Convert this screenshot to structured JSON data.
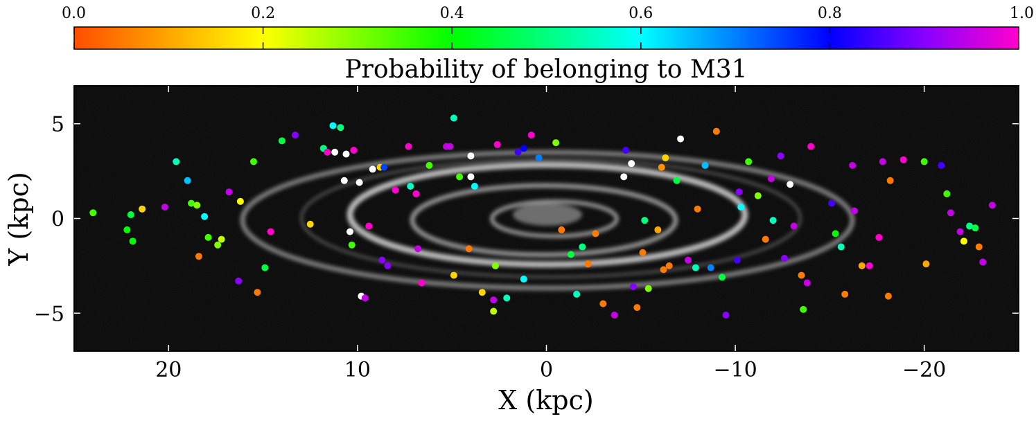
{
  "chart_data": {
    "type": "scatter",
    "background": "grayscale optical image of the M31 (Andromeda) galaxy disk",
    "xlabel": "X (kpc)",
    "ylabel": "Y (kpc)",
    "xlim": [
      25,
      -25
    ],
    "ylim": [
      -7,
      7
    ],
    "xticks": [
      20,
      10,
      0,
      -10,
      -20
    ],
    "xtick_labels": [
      "20",
      "10",
      "0",
      "−10",
      "−20"
    ],
    "yticks": [
      5,
      0,
      -5
    ],
    "ytick_labels": [
      "5",
      "0",
      "−5"
    ],
    "colorbar": {
      "label": "Probability of belonging to M31",
      "range": [
        0,
        1
      ],
      "ticks": [
        0.0,
        0.2,
        0.4,
        0.6,
        0.8,
        1.0
      ],
      "tick_labels": [
        "0.0",
        "0.2",
        "0.4",
        "0.6",
        "0.8",
        "1.0"
      ],
      "placement": "top"
    },
    "points": [
      [
        24.0,
        0.3,
        0.35
      ],
      [
        22.2,
        -0.6,
        0.4
      ],
      [
        22.0,
        0.2,
        0.45
      ],
      [
        21.9,
        -1.2,
        0.4
      ],
      [
        21.4,
        0.5,
        0.15
      ],
      [
        20.2,
        0.6,
        0.95
      ],
      [
        19.6,
        3.0,
        0.55
      ],
      [
        19.0,
        2.0,
        0.65
      ],
      [
        18.8,
        0.8,
        0.35
      ],
      [
        18.5,
        0.7,
        0.3
      ],
      [
        18.4,
        -2.0,
        0.05
      ],
      [
        18.1,
        0.1,
        0.6
      ],
      [
        17.9,
        -1.0,
        0.35
      ],
      [
        17.4,
        -1.4,
        0.3
      ],
      [
        17.2,
        -1.1,
        0.25
      ],
      [
        16.8,
        1.4,
        0.95
      ],
      [
        16.3,
        -3.3,
        0.9
      ],
      [
        16.2,
        0.9,
        0.2
      ],
      [
        15.5,
        3.0,
        0.35
      ],
      [
        15.3,
        -3.9,
        0.05
      ],
      [
        14.9,
        -2.6,
        0.45
      ],
      [
        14.6,
        -0.7,
        1.0
      ],
      [
        14.0,
        4.1,
        0.45
      ],
      [
        13.3,
        4.4,
        0.9
      ],
      [
        12.5,
        -0.3,
        0.15
      ],
      [
        11.8,
        3.7,
        0.5
      ],
      [
        11.6,
        3.5,
        1.0
      ],
      [
        11.3,
        4.9,
        0.6
      ],
      [
        11.2,
        3.5,
        -1
      ],
      [
        10.9,
        4.8,
        0.5
      ],
      [
        10.7,
        2.0,
        -1
      ],
      [
        10.6,
        3.4,
        -1
      ],
      [
        10.4,
        -0.7,
        -1
      ],
      [
        10.3,
        -1.4,
        0.35
      ],
      [
        10.2,
        3.6,
        1.0
      ],
      [
        9.9,
        1.9,
        -1
      ],
      [
        9.8,
        -4.1,
        -1
      ],
      [
        9.6,
        -4.2,
        0.95
      ],
      [
        9.4,
        -0.4,
        1.0
      ],
      [
        9.2,
        2.6,
        -1
      ],
      [
        8.8,
        2.7,
        0.15
      ],
      [
        8.6,
        2.7,
        0.75
      ],
      [
        8.4,
        -2.5,
        0.9
      ],
      [
        8.0,
        1.5,
        1.0
      ],
      [
        7.3,
        3.8,
        1.0
      ],
      [
        7.2,
        1.7,
        0.55
      ],
      [
        6.9,
        1.3,
        1.0
      ],
      [
        6.6,
        -3.4,
        1.0
      ],
      [
        6.2,
        2.8,
        0.35
      ],
      [
        5.3,
        3.8,
        0.95
      ],
      [
        5.1,
        3.8,
        0.95
      ],
      [
        4.9,
        5.3,
        0.55
      ],
      [
        4.9,
        -3.0,
        0.15
      ],
      [
        4.6,
        2.2,
        0.35
      ],
      [
        4.0,
        2.2,
        -1
      ],
      [
        4.1,
        -1.6,
        0.05
      ],
      [
        4.0,
        3.3,
        -1
      ],
      [
        3.4,
        -3.9,
        0.15
      ],
      [
        2.8,
        -4.3,
        0.95
      ],
      [
        2.8,
        -4.9,
        0.25
      ],
      [
        2.7,
        -2.5,
        0.3
      ],
      [
        2.6,
        3.9,
        1.0
      ],
      [
        1.5,
        3.5,
        0.85
      ],
      [
        1.2,
        3.7,
        0.8
      ],
      [
        0.8,
        4.4,
        1.0
      ],
      [
        0.4,
        3.2,
        0.7
      ],
      [
        -0.5,
        4.0,
        0.3
      ],
      [
        -0.8,
        -0.6,
        0.05
      ],
      [
        -1.3,
        -1.9,
        0.45
      ],
      [
        -1.6,
        -4.0,
        0.55
      ],
      [
        -1.9,
        -1.5,
        0.5
      ],
      [
        -2.2,
        -2.4,
        0.05
      ],
      [
        -2.6,
        -0.8,
        0.05
      ],
      [
        -3.0,
        -4.5,
        0.05
      ],
      [
        -3.6,
        -5.1,
        0.95
      ],
      [
        -4.1,
        2.2,
        -1
      ],
      [
        -4.2,
        3.6,
        0.85
      ],
      [
        -4.5,
        2.9,
        -1
      ],
      [
        -4.6,
        -3.6,
        0.9
      ],
      [
        -4.8,
        -4.7,
        0.05
      ],
      [
        -5.1,
        -1.8,
        0.05
      ],
      [
        -5.2,
        -0.1,
        0.5
      ],
      [
        -5.4,
        -3.7,
        0.3
      ],
      [
        -5.9,
        -0.6,
        0.1
      ],
      [
        -6.1,
        2.7,
        0.08
      ],
      [
        -6.3,
        3.2,
        0.15
      ],
      [
        -6.5,
        -2.5,
        0.05
      ],
      [
        -6.9,
        2.0,
        0.45
      ],
      [
        -7.1,
        4.2,
        -1
      ],
      [
        -7.5,
        -2.2,
        0.95
      ],
      [
        -8.0,
        0.5,
        0.05
      ],
      [
        -8.4,
        2.8,
        0.65
      ],
      [
        -8.7,
        -2.6,
        0.7
      ],
      [
        -9.0,
        4.6,
        0.05
      ],
      [
        -9.3,
        -3.1,
        0.45
      ],
      [
        -9.5,
        -5.1,
        0.9
      ],
      [
        -10.2,
        1.4,
        0.9
      ],
      [
        -10.3,
        0.6,
        0.6
      ],
      [
        -10.7,
        3.0,
        0.35
      ],
      [
        -11.2,
        1.2,
        0.3
      ],
      [
        -11.6,
        -1.1,
        0.05
      ],
      [
        -11.9,
        2.1,
        0.95
      ],
      [
        -12.4,
        3.3,
        0.9
      ],
      [
        -12.6,
        -2.1,
        0.9
      ],
      [
        -12.9,
        1.8,
        -1
      ],
      [
        -13.1,
        -0.4,
        0.95
      ],
      [
        -13.5,
        -3.0,
        0.05
      ],
      [
        -13.6,
        -4.8,
        0.35
      ],
      [
        -14.0,
        3.8,
        1.0
      ],
      [
        -15.1,
        0.8,
        0.85
      ],
      [
        -15.3,
        -0.8,
        0.4
      ],
      [
        -15.6,
        -1.5,
        0.55
      ],
      [
        -15.8,
        -4.0,
        0.05
      ],
      [
        -16.2,
        2.8,
        0.95
      ],
      [
        -16.3,
        0.4,
        0.95
      ],
      [
        -16.7,
        -2.5,
        0.1
      ],
      [
        -17.1,
        -2.5,
        1.0
      ],
      [
        -17.6,
        -1.0,
        1.0
      ],
      [
        -17.8,
        3.0,
        0.95
      ],
      [
        -18.1,
        -4.1,
        0.05
      ],
      [
        -18.2,
        2.0,
        0.05
      ],
      [
        -18.9,
        3.1,
        1.0
      ],
      [
        -20.0,
        3.0,
        0.35
      ],
      [
        -20.9,
        2.8,
        0.85
      ],
      [
        -20.1,
        -2.4,
        0.1
      ],
      [
        -21.2,
        1.3,
        0.35
      ],
      [
        -21.4,
        0.3,
        0.95
      ],
      [
        -21.9,
        -0.7,
        0.95
      ],
      [
        -22.1,
        -1.2,
        0.2
      ],
      [
        -22.4,
        -0.4,
        0.5
      ],
      [
        -22.7,
        -0.5,
        0.45
      ],
      [
        -22.9,
        -1.5,
        0.05
      ],
      [
        -23.1,
        -2.3,
        0.95
      ],
      [
        -23.6,
        0.7,
        0.95
      ],
      [
        -13.8,
        -3.4,
        0.95
      ],
      [
        6.8,
        -1.6,
        0.95
      ],
      [
        8.7,
        -2.2,
        0.9
      ],
      [
        -7.9,
        -2.6,
        0.55
      ],
      [
        -10.1,
        -2.2,
        0.85
      ],
      [
        3.8,
        1.7,
        0.6
      ],
      [
        1.2,
        -3.2,
        0.6
      ],
      [
        2.1,
        -4.2,
        0.55
      ],
      [
        -6.2,
        -2.7,
        0.05
      ],
      [
        -12.0,
        -0.1,
        0.55
      ]
    ]
  }
}
